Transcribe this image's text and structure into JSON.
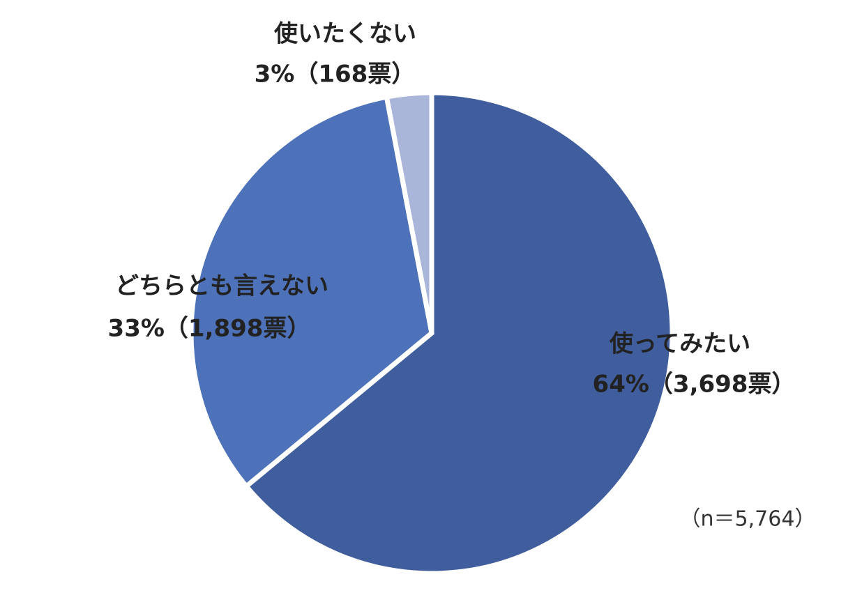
{
  "chart_data": {
    "type": "pie",
    "categories": [
      "使ってみたい",
      "どちらとも言えない",
      "使いたくない"
    ],
    "values": [
      64,
      33,
      3
    ],
    "value_labels": [
      "64%（3,698票）",
      "33%（1,898票）",
      "3%（168票）"
    ],
    "colors": [
      "#405e9e",
      "#4e72ba",
      "#a9b5d9"
    ],
    "annotation": "（n＝5,764）"
  }
}
